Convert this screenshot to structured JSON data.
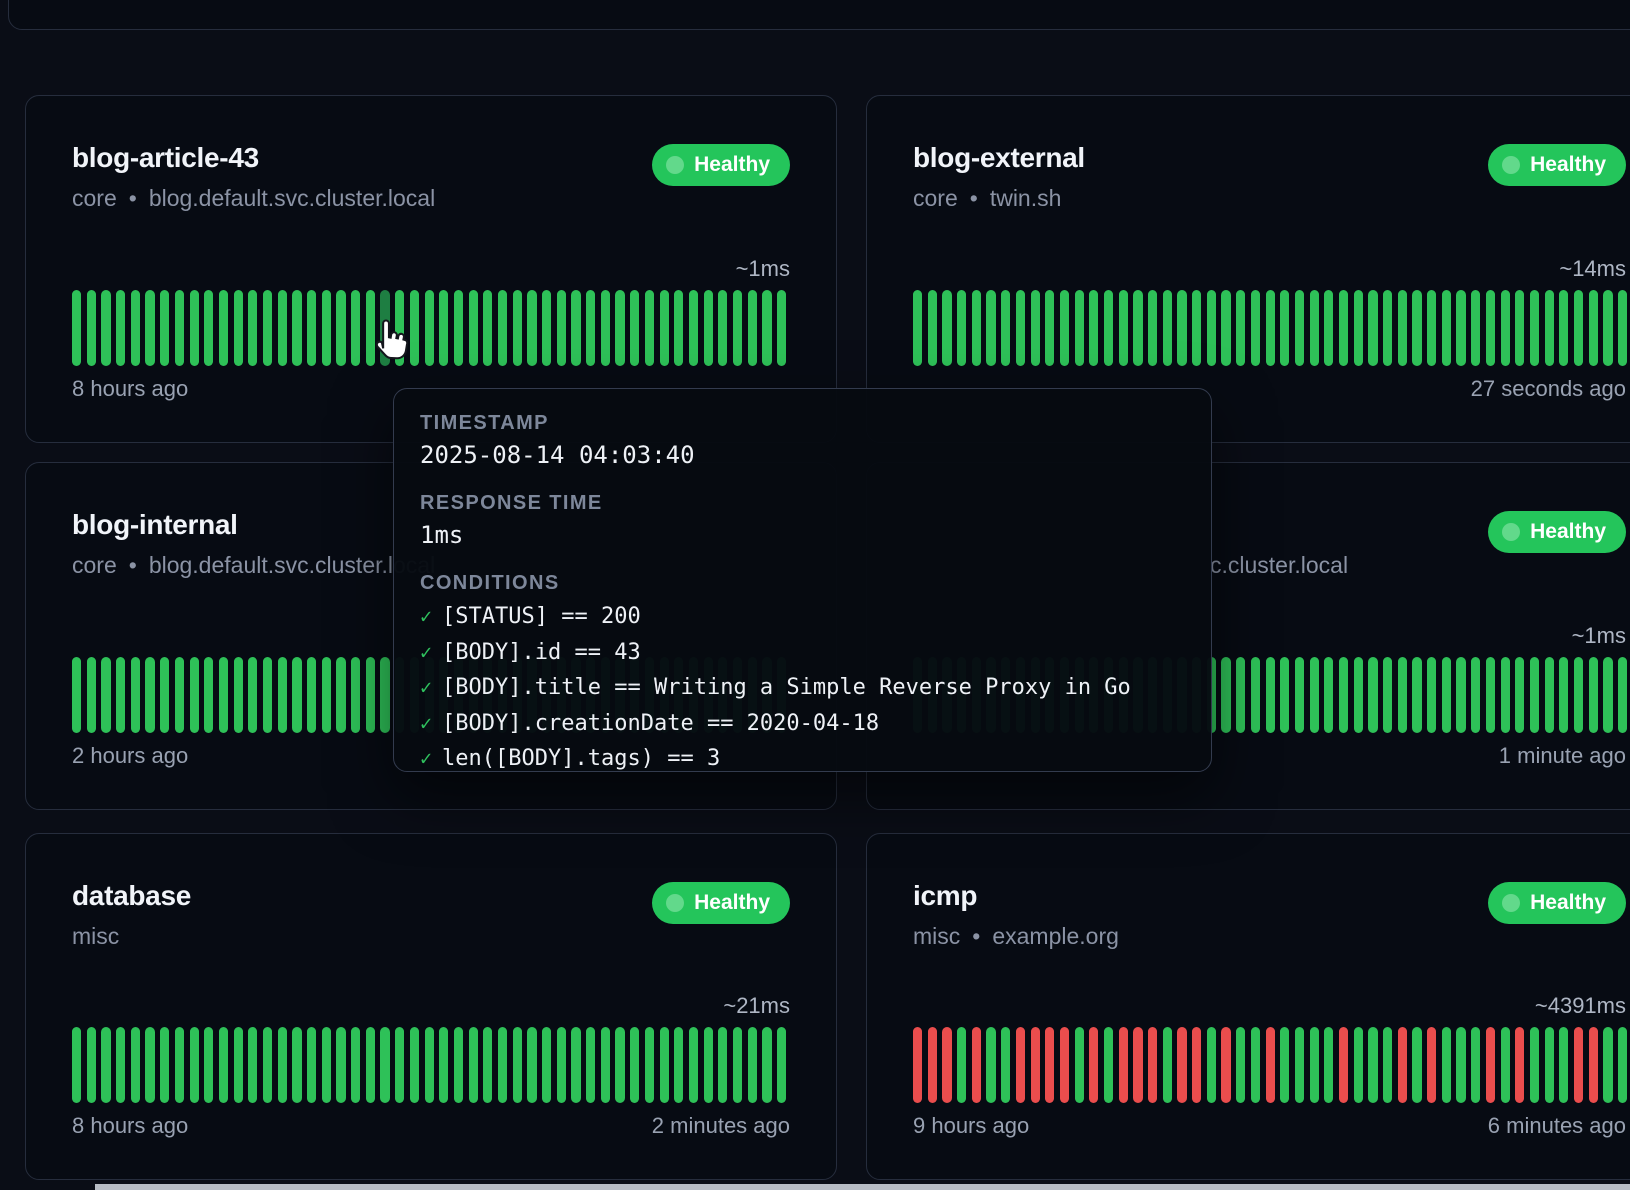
{
  "status_label_healthy": "Healthy",
  "colors": {
    "background": "#0a0d16",
    "card_background": "#070b13",
    "badge_green": "#24c55b",
    "bar_green": "#2ec158",
    "bar_red": "#ea4d4d",
    "bar_hovered": "#1e7e42"
  },
  "cards": [
    {
      "title": "blog-article-43",
      "group": "core",
      "url": "blog.default.svc.cluster.local",
      "status": "Healthy",
      "response_time": "~1ms",
      "oldest": "8 hours ago",
      "newest": "",
      "bars": "ggggggggggggggggggggghggggggggggggggggggggggggggg"
    },
    {
      "title": "blog-external",
      "group": "core",
      "url": "twin.sh",
      "status": "Healthy",
      "response_time": "~14ms",
      "oldest": "",
      "newest": "27 seconds ago",
      "bars": "ggggggggggggggggggggggggggggggggggggggggggggggggg"
    },
    {
      "title": "blog-internal",
      "group": "core",
      "url": "blog.default.svc.cluster.local",
      "status": "",
      "response_time": "",
      "oldest": "2 hours ago",
      "newest": "",
      "bars": "ggggggggggggggggggggggggggggggggggggggggggggggggg"
    },
    {
      "title": "",
      "group": "",
      "url": "c.cluster.local",
      "status": "Healthy",
      "response_time": "~1ms",
      "oldest": "",
      "newest": "1 minute ago",
      "bars": "ggggggggggggggggggggggggggggggggggggggggggggggggg"
    },
    {
      "title": "database",
      "group": "misc",
      "url": "",
      "status": "Healthy",
      "response_time": "~21ms",
      "oldest": "8 hours ago",
      "newest": "2 minutes ago",
      "bars": "ggggggggggggggggggggggggggggggggggggggggggggggggg"
    },
    {
      "title": "icmp",
      "group": "misc",
      "url": "example.org",
      "status": "Healthy",
      "response_time": "~4391ms",
      "oldest": "9 hours ago",
      "newest": "6 minutes ago",
      "bars": "rrrgrggrrrrgrgrrrgrrgrggrggggrgggrgrgggrgrgggrrgg"
    }
  ],
  "tooltip": {
    "timestamp_label": "TIMESTAMP",
    "timestamp": "2025-08-14 04:03:40",
    "response_time_label": "RESPONSE TIME",
    "response_time": "1ms",
    "conditions_label": "CONDITIONS",
    "check_glyph": "✓",
    "conditions": [
      "[STATUS] == 200",
      "[BODY].id == 43",
      "[BODY].title == Writing a Simple Reverse Proxy in Go",
      "[BODY].creationDate == 2020-04-18",
      "len([BODY].tags) == 3"
    ]
  }
}
